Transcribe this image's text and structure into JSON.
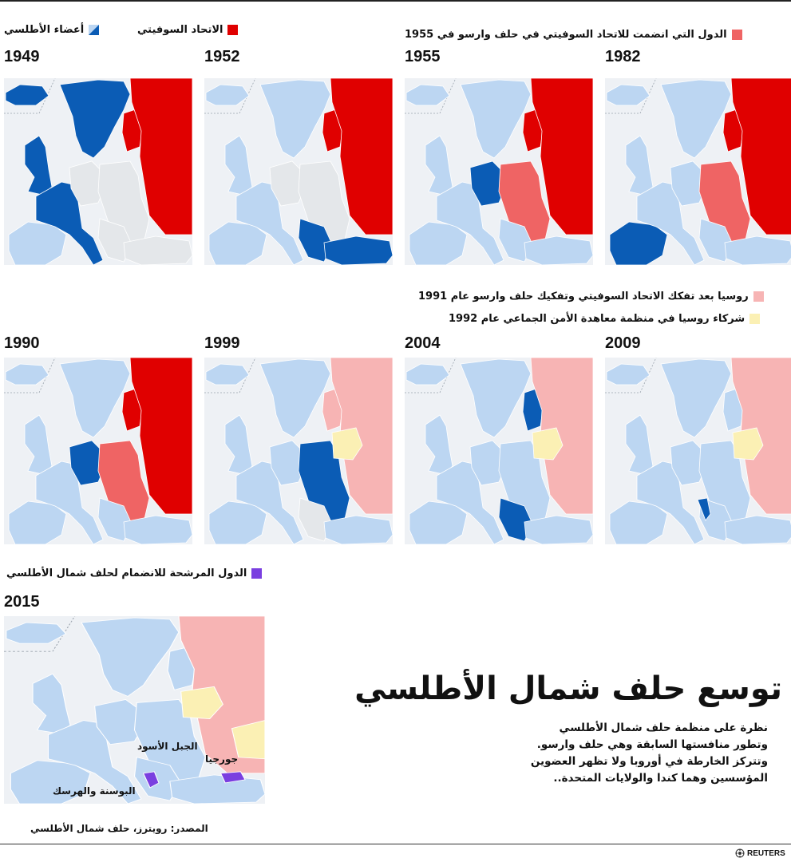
{
  "colors": {
    "nato": "#0b5cb5",
    "nato_light": "#bcd6f2",
    "soviet": "#e00000",
    "warsaw": "#ef6464",
    "russia_1991": "#f7b4b4",
    "csto": "#fbf0b4",
    "candidate": "#7a3fe0",
    "neutral": "#e4e7ea",
    "sea": "#eef1f5"
  },
  "legend": {
    "nato_members": "أعضاء الأطلسي",
    "soviet_union": "الاتحاد السوفيتي",
    "warsaw_1955": "الدول التي انضمت للاتحاد السوفيتي في حلف وارسو في 1955",
    "russia_1991": "روسيا بعد تفكك الاتحاد السوفيتي وتفكيك حلف وارسو عام 1991",
    "csto_1992": "شركاء روسيا في منظمة معاهدة الأمن الجماعي عام 1992",
    "candidates": "الدول المرشحة للانضمام لحلف شمال الأطلسي"
  },
  "maps": [
    {
      "year": "1949",
      "states": {
        "west": "new",
        "iberia": "light",
        "uk": "new",
        "iceland": "new",
        "scandinavia": "new",
        "centraleu": "neutral",
        "eastcentral": "neutral",
        "balkans": "neutral",
        "turkey": "neutral",
        "baltic": "soviet",
        "russia": "soviet"
      }
    },
    {
      "year": "1952",
      "states": {
        "west": "light",
        "iberia": "light",
        "uk": "light",
        "iceland": "light",
        "scandinavia": "light",
        "centraleu": "neutral",
        "eastcentral": "neutral",
        "balkans": "new",
        "turkey": "new",
        "baltic": "soviet",
        "russia": "soviet"
      }
    },
    {
      "year": "1955",
      "states": {
        "west": "light",
        "iberia": "light",
        "uk": "light",
        "iceland": "light",
        "scandinavia": "light",
        "centraleu": "new",
        "eastcentral": "warsaw",
        "balkans": "light",
        "turkey": "light",
        "baltic": "soviet",
        "russia": "soviet"
      }
    },
    {
      "year": "1982",
      "states": {
        "west": "light",
        "iberia": "new",
        "uk": "light",
        "iceland": "light",
        "scandinavia": "light",
        "centraleu": "light",
        "eastcentral": "warsaw",
        "balkans": "light",
        "turkey": "light",
        "baltic": "soviet",
        "russia": "soviet"
      }
    },
    {
      "year": "1990",
      "states": {
        "west": "light",
        "iberia": "light",
        "uk": "light",
        "iceland": "light",
        "scandinavia": "light",
        "centraleu": "new",
        "eastcentral": "warsaw",
        "balkans": "light",
        "turkey": "light",
        "baltic": "soviet",
        "russia": "soviet"
      }
    },
    {
      "year": "1999",
      "states": {
        "west": "light",
        "iberia": "light",
        "uk": "light",
        "iceland": "light",
        "scandinavia": "light",
        "centraleu": "light",
        "eastcentral": "new",
        "balkans": "neutral",
        "turkey": "light",
        "baltic": "russia91",
        "russia": "russia91",
        "belarus": "csto"
      }
    },
    {
      "year": "2004",
      "states": {
        "west": "light",
        "iberia": "light",
        "uk": "light",
        "iceland": "light",
        "scandinavia": "light",
        "centraleu": "light",
        "eastcentral": "light",
        "balkans": "new",
        "turkey": "light",
        "baltic": "new",
        "russia": "russia91",
        "belarus": "csto"
      }
    },
    {
      "year": "2009",
      "states": {
        "west": "light",
        "iberia": "light",
        "uk": "light",
        "iceland": "light",
        "scandinavia": "light",
        "centraleu": "light",
        "eastcentral": "light",
        "balkans": "light",
        "turkey": "light",
        "baltic": "light",
        "russia": "russia91",
        "belarus": "csto",
        "croatia": "new"
      }
    },
    {
      "year": "2015",
      "states": {
        "west": "light",
        "iberia": "light",
        "uk": "light",
        "iceland": "light",
        "scandinavia": "light",
        "centraleu": "light",
        "eastcentral": "light",
        "balkans": "light",
        "turkey": "light",
        "baltic": "light",
        "russia": "russia91",
        "belarus": "csto",
        "kazakhstan": "csto",
        "candidates": "candidate"
      }
    }
  ],
  "labels_2015": {
    "georgia": "جورجيا",
    "montenegro": "الجبل الأسود",
    "bosnia": "البوسنة والهرسك"
  },
  "title": "توسع حلف شمال الأطلسي",
  "description": [
    "نظرة على منظمة حلف شمال الأطلسي",
    "وتطور منافستها السابقة وهي حلف وارسو.",
    "وتتركز الخارطة في أوروبا ولا تظهر العضوين",
    "المؤسسين وهما كندا والولايات المتحدة.."
  ],
  "source": "المصدر: رويترز، حلف شمال الأطلسي",
  "logo": "REUTERS"
}
